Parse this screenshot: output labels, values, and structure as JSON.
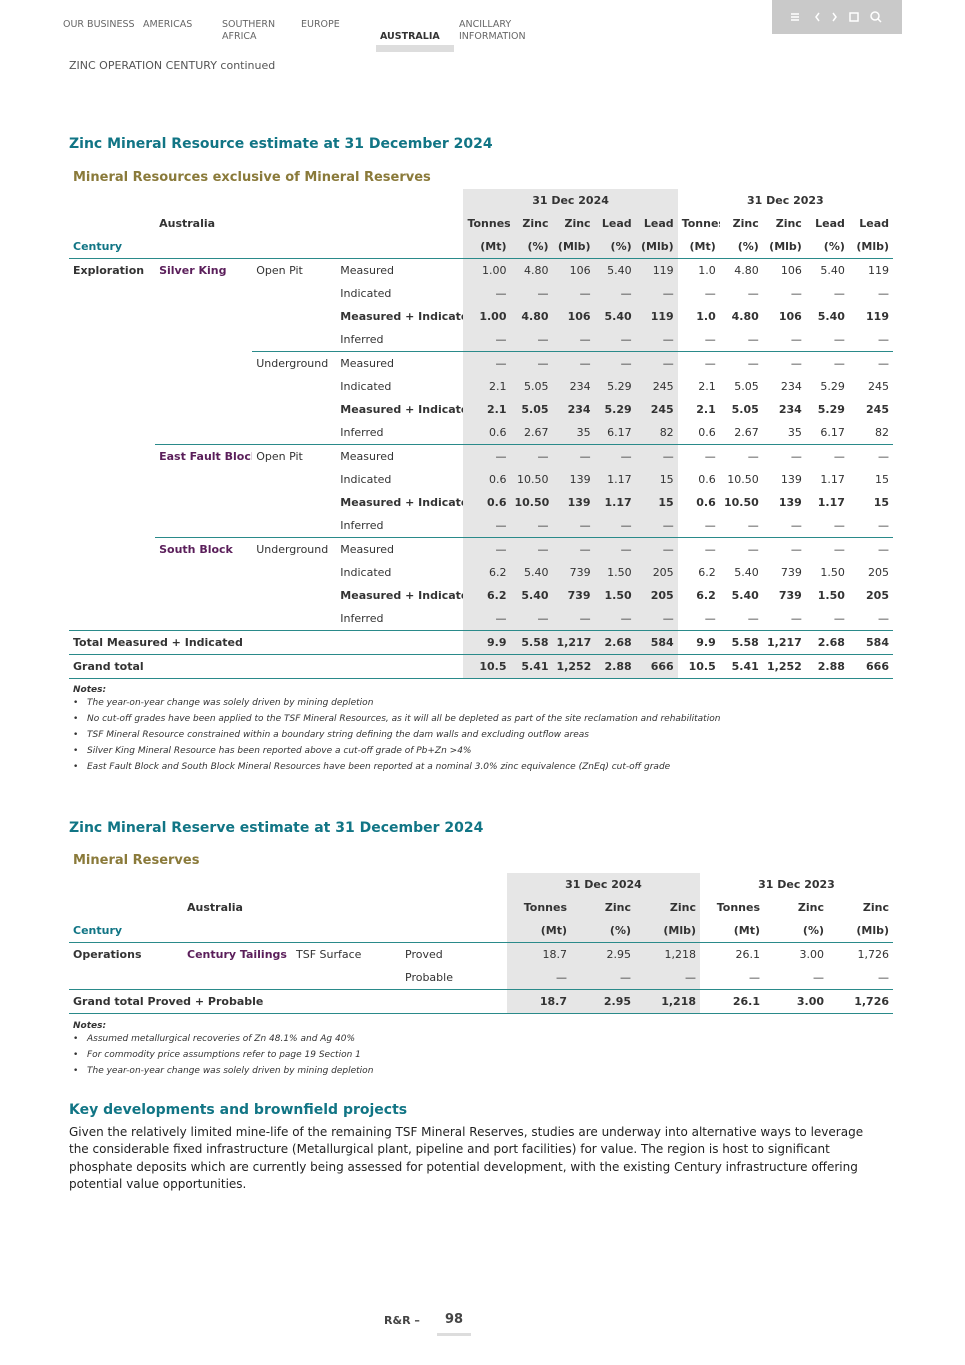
{
  "nav": {
    "items": [
      "OUR BUSINESS",
      "AMERICAS",
      "SOUTHERN AFRICA",
      "EUROPE",
      "AUSTRALIA",
      "ANCILLARY INFORMATION"
    ],
    "active": 4
  },
  "section_label": "ZINC OPERATION CENTURY continued",
  "resource": {
    "title": "Zinc Mineral Resource estimate at 31 December 2024",
    "subtitle": "Mineral Resources exclusive of Mineral Reserves",
    "column_groups": [
      "31 Dec 2024",
      "31 Dec 2023"
    ],
    "region": "Australia",
    "century": "Century",
    "columns": [
      "Tonnes",
      "Zinc",
      "Zinc",
      "Lead",
      "Lead",
      "Tonnes",
      "Zinc",
      "Zinc",
      "Lead",
      "Lead"
    ],
    "units": [
      "(Mt)",
      "(%)",
      "(Mlb)",
      "(%)",
      "(Mlb)",
      "(Mt)",
      "(%)",
      "(Mlb)",
      "(%)",
      "(Mlb)"
    ],
    "rows": [
      {
        "category": "Exploration",
        "deposit": "Silver King",
        "method": "Open Pit",
        "class": "Measured",
        "values": [
          "1.00",
          "4.80",
          "106",
          "5.40",
          "119",
          "1.0",
          "4.80",
          "106",
          "5.40",
          "119"
        ]
      },
      {
        "class": "Indicated",
        "values": [
          "—",
          "—",
          "—",
          "—",
          "—",
          "—",
          "—",
          "—",
          "—",
          "—"
        ]
      },
      {
        "class": "Measured + Indicated",
        "bold": true,
        "values": [
          "1.00",
          "4.80",
          "106",
          "5.40",
          "119",
          "1.0",
          "4.80",
          "106",
          "5.40",
          "119"
        ]
      },
      {
        "class": "Inferred",
        "values": [
          "—",
          "—",
          "—",
          "—",
          "—",
          "—",
          "—",
          "—",
          "—",
          "—"
        ]
      },
      {
        "method": "Underground",
        "class": "Measured",
        "values": [
          "—",
          "—",
          "—",
          "—",
          "—",
          "—",
          "—",
          "—",
          "—",
          "—"
        ]
      },
      {
        "class": "Indicated",
        "values": [
          "2.1",
          "5.05",
          "234",
          "5.29",
          "245",
          "2.1",
          "5.05",
          "234",
          "5.29",
          "245"
        ]
      },
      {
        "class": "Measured + Indicated",
        "bold": true,
        "values": [
          "2.1",
          "5.05",
          "234",
          "5.29",
          "245",
          "2.1",
          "5.05",
          "234",
          "5.29",
          "245"
        ]
      },
      {
        "class": "Inferred",
        "values": [
          "0.6",
          "2.67",
          "35",
          "6.17",
          "82",
          "0.6",
          "2.67",
          "35",
          "6.17",
          "82"
        ]
      },
      {
        "deposit": "East Fault Block",
        "method": "Open Pit",
        "class": "Measured",
        "values": [
          "—",
          "—",
          "—",
          "—",
          "—",
          "—",
          "—",
          "—",
          "—",
          "—"
        ]
      },
      {
        "class": "Indicated",
        "values": [
          "0.6",
          "10.50",
          "139",
          "1.17",
          "15",
          "0.6",
          "10.50",
          "139",
          "1.17",
          "15"
        ]
      },
      {
        "class": "Measured + Indicated",
        "bold": true,
        "values": [
          "0.6",
          "10.50",
          "139",
          "1.17",
          "15",
          "0.6",
          "10.50",
          "139",
          "1.17",
          "15"
        ]
      },
      {
        "class": "Inferred",
        "values": [
          "—",
          "—",
          "—",
          "—",
          "—",
          "—",
          "—",
          "—",
          "—",
          "—"
        ]
      },
      {
        "deposit": "South Block",
        "method": "Underground",
        "class": "Measured",
        "values": [
          "—",
          "—",
          "—",
          "—",
          "—",
          "—",
          "—",
          "—",
          "—",
          "—"
        ]
      },
      {
        "class": "Indicated",
        "values": [
          "6.2",
          "5.40",
          "739",
          "1.50",
          "205",
          "6.2",
          "5.40",
          "739",
          "1.50",
          "205"
        ]
      },
      {
        "class": "Measured + Indicated",
        "bold": true,
        "values": [
          "6.2",
          "5.40",
          "739",
          "1.50",
          "205",
          "6.2",
          "5.40",
          "739",
          "1.50",
          "205"
        ]
      },
      {
        "class": "Inferred",
        "values": [
          "—",
          "—",
          "—",
          "—",
          "—",
          "—",
          "—",
          "—",
          "—",
          "—"
        ]
      }
    ],
    "totals": [
      {
        "label": "Total Measured + Indicated",
        "values": [
          "9.9",
          "5.58",
          "1,217",
          "2.68",
          "584",
          "9.9",
          "5.58",
          "1,217",
          "2.68",
          "584"
        ]
      },
      {
        "label": "Grand total",
        "values": [
          "10.5",
          "5.41",
          "1,252",
          "2.88",
          "666",
          "10.5",
          "5.41",
          "1,252",
          "2.88",
          "666"
        ]
      }
    ],
    "notes_title": "Notes:",
    "notes": [
      "The year-on-year change was solely driven by mining depletion",
      "No cut-off grades have been applied to the TSF Mineral Resources, as it will all be depleted as part of the site reclamation and  rehabilitation",
      "TSF Mineral Resource constrained within a boundary string defining the dam walls and excluding outflow areas",
      "Silver King Mineral Resource has been reported above a cut-off grade of Pb+Zn >4%",
      "East Fault Block and South Block Mineral Resources have been reported at a nominal 3.0% zinc equivalence (ZnEq) cut-off grade"
    ]
  },
  "reserve": {
    "title": "Zinc Mineral Reserve estimate at 31 December 2024",
    "subtitle": "Mineral Reserves",
    "column_groups": [
      "31 Dec 2024",
      "31 Dec 2023"
    ],
    "region": "Australia",
    "century": "Century",
    "columns": [
      "Tonnes",
      "Zinc",
      "Zinc",
      "Tonnes",
      "Zinc",
      "Zinc"
    ],
    "units": [
      "(Mt)",
      "(%)",
      "(Mlb)",
      "(Mt)",
      "(%)",
      "(Mlb)"
    ],
    "rows": [
      {
        "category": "Operations",
        "deposit": "Century Tailings",
        "method": "TSF Surface",
        "class": "Proved",
        "values": [
          "18.7",
          "2.95",
          "1,218",
          "26.1",
          "3.00",
          "1,726"
        ]
      },
      {
        "class": "Probable",
        "values": [
          "—",
          "—",
          "—",
          "—",
          "—",
          "—"
        ]
      }
    ],
    "totals": [
      {
        "label": "Grand total Proved + Probable",
        "values": [
          "18.7",
          "2.95",
          "1,218",
          "26.1",
          "3.00",
          "1,726"
        ]
      }
    ],
    "notes_title": "Notes:",
    "notes": [
      "Assumed metallurgical recoveries of Zn 48.1% and Ag 40%",
      "For commodity price assumptions refer to page 19 Section 1",
      "The year-on-year change was solely driven by mining depletion"
    ]
  },
  "key_developments": {
    "title": "Key developments and brownfield projects",
    "text": "Given the relatively limited mine-life of the remaining TSF Mineral Reserves, studies are underway into alternative ways to leverage the considerable fixed infrastructure (Metallurgical plant, pipeline and port facilities) for value. The region is host to significant phosphate deposits which are currently being assessed for potential development, with the existing Century infrastructure offering potential value opportunities."
  },
  "footer": {
    "label": "R&R –",
    "page": "98"
  }
}
